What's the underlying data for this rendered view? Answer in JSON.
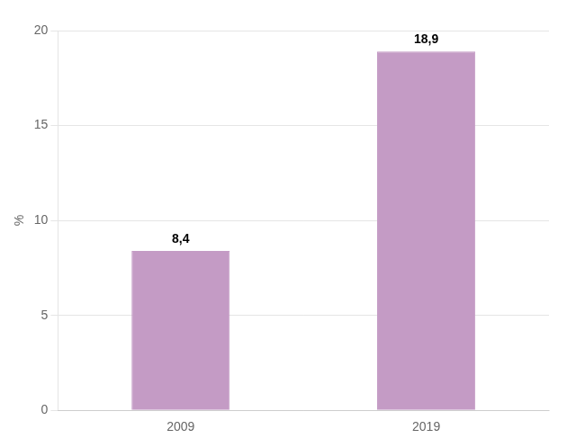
{
  "chart_data": {
    "type": "bar",
    "y_label": "%",
    "categories": [
      "2009",
      "2019"
    ],
    "values": [
      8.4,
      18.9
    ],
    "value_labels": [
      "8,4",
      "18,9"
    ],
    "color": "#c49bc5",
    "ylim": [
      0,
      20
    ],
    "yticks": [
      0,
      5,
      10,
      15,
      20
    ],
    "grid": true,
    "data_labels": true
  }
}
